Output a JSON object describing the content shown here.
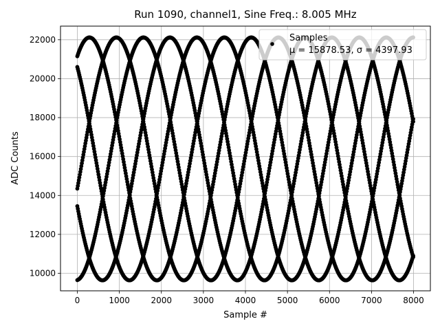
{
  "chart_data": {
    "type": "scatter",
    "title": "Run 1090, channel1, Sine Freq.: 8.005 MHz",
    "xlabel": "Sample #",
    "ylabel": "ADC Counts",
    "xlim": [
      -400,
      8400
    ],
    "ylim": [
      9100,
      22700
    ],
    "xticks": [
      0,
      1000,
      2000,
      3000,
      4000,
      5000,
      6000,
      7000,
      8000
    ],
    "yticks": [
      10000,
      12000,
      14000,
      16000,
      18000,
      20000,
      22000
    ],
    "grid": true,
    "legend_position": "top-right",
    "series": [
      {
        "name": "Samples",
        "color": "#000000",
        "marker": "filled-circle",
        "model": {
          "mean": 15878.53,
          "amplitude": 6240,
          "period": 3210,
          "phase_points": [
            {
              "x": 0,
              "y": 21150
            },
            {
              "x": 0,
              "y": 20600
            },
            {
              "x": 0,
              "y": 14350
            },
            {
              "x": 0,
              "y": 13450
            },
            {
              "x": 0,
              "y": 9650
            }
          ],
          "x_range": [
            0,
            8000
          ]
        }
      }
    ],
    "legend": {
      "label": "Samples",
      "stats": "μ = 15878.53, σ = 4397.93"
    }
  }
}
